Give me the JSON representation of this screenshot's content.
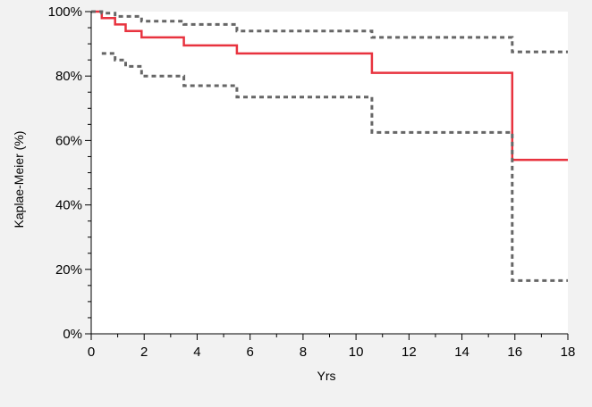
{
  "chart_data": {
    "type": "line",
    "title": "",
    "xlabel": "Yrs",
    "ylabel": "Kaplae-Meier (%)",
    "xlim": [
      0,
      18
    ],
    "ylim": [
      0,
      100
    ],
    "x_ticks": [
      0,
      2,
      4,
      6,
      8,
      10,
      12,
      14,
      16,
      18
    ],
    "x_tick_labels": [
      "0",
      "2",
      "4",
      "6",
      "8",
      "10",
      "12",
      "14",
      "16",
      "18"
    ],
    "y_ticks": [
      0,
      20,
      40,
      60,
      80,
      100
    ],
    "y_tick_labels": [
      "0%",
      "20%",
      "40%",
      "60%",
      "80%",
      "100%"
    ],
    "grid": false,
    "legend": "none",
    "series": [
      {
        "style": "solid",
        "color": "#e8333f",
        "step": "post",
        "x": [
          0,
          0.4,
          0.9,
          1.3,
          1.9,
          3.5,
          5.5,
          10.6,
          15.9,
          18
        ],
        "y": [
          100,
          98,
          96,
          94,
          92,
          89.5,
          87,
          81,
          54,
          54
        ]
      },
      {
        "style": "dashed",
        "color": "#666666",
        "step": "post",
        "x": [
          0,
          0.4,
          0.9,
          1.9,
          3.5,
          5.5,
          10.6,
          15.9,
          18
        ],
        "y": [
          100,
          99.5,
          98.5,
          97,
          96,
          94,
          92,
          87.5,
          87.5
        ]
      },
      {
        "style": "dashed",
        "color": "#666666",
        "step": "post",
        "x": [
          0.4,
          0.9,
          1.3,
          1.9,
          3.5,
          5.5,
          10.6,
          15.9,
          18
        ],
        "y": [
          87,
          85,
          83,
          80,
          77,
          73.5,
          62.5,
          16.5,
          16.5
        ]
      }
    ]
  }
}
